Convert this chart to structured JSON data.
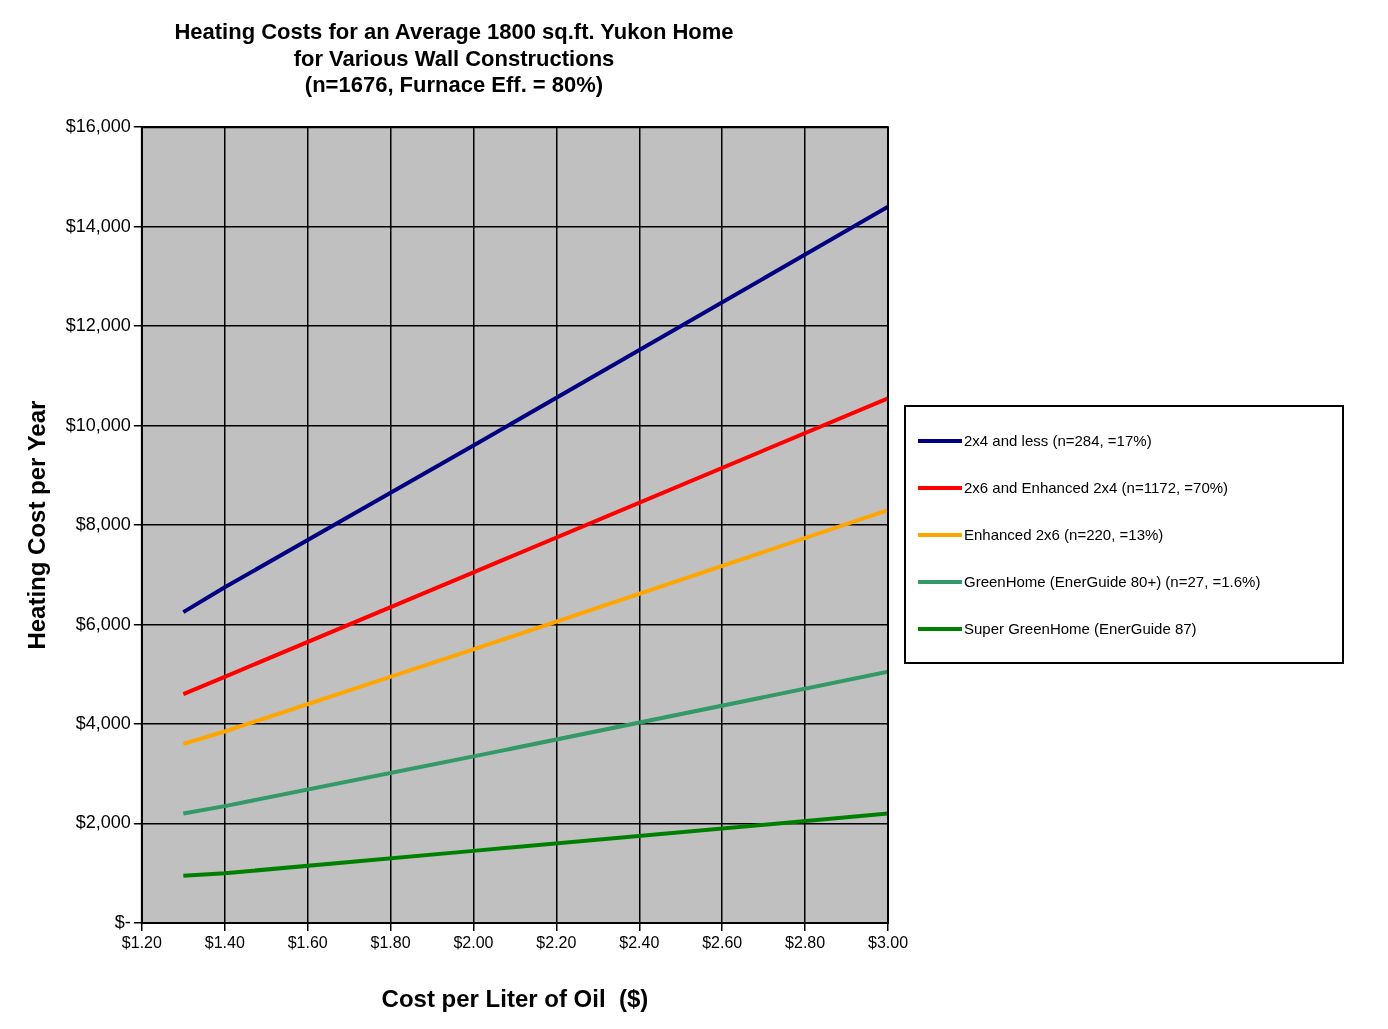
{
  "chart_data": {
    "type": "line",
    "title": "Heating Costs for an Average 1800 sq.ft. Yukon Home\nfor Various Wall Constructions\n(n=1676, Furnace Eff. = 80%)",
    "xlabel": "Cost per Liter of Oil  ($)",
    "ylabel": "Heating Cost per Year",
    "x": [
      1.3,
      1.4,
      2.0,
      3.0
    ],
    "series": [
      {
        "name": "2x4 and less  (n=284, =17%)",
        "color": "#000080",
        "values": [
          6250,
          6750,
          9600,
          14400
        ]
      },
      {
        "name": "2x6 and Enhanced 2x4 (n=1172, =70%)",
        "color": "#ff0000",
        "values": [
          4600,
          4950,
          7050,
          10550
        ]
      },
      {
        "name": "Enhanced 2x6 (n=220, =13%)",
        "color": "#ffa500",
        "values": [
          3600,
          3850,
          5500,
          8300
        ]
      },
      {
        "name": "GreenHome (EnerGuide 80+) (n=27, =1.6%)",
        "color": "#339966",
        "values": [
          2200,
          2350,
          3350,
          5050
        ]
      },
      {
        "name": "Super GreenHome (EnerGuide 87)",
        "color": "#008000",
        "values": [
          950,
          1000,
          1450,
          2200
        ]
      }
    ],
    "xlim": [
      1.2,
      3.0
    ],
    "xticks": [
      {
        "value": 1.2,
        "label": "$1.20"
      },
      {
        "value": 1.4,
        "label": "$1.40"
      },
      {
        "value": 1.6,
        "label": "$1.60"
      },
      {
        "value": 1.8,
        "label": "$1.80"
      },
      {
        "value": 2.0,
        "label": "$2.00"
      },
      {
        "value": 2.2,
        "label": "$2.20"
      },
      {
        "value": 2.4,
        "label": "$2.40"
      },
      {
        "value": 2.6,
        "label": "$2.60"
      },
      {
        "value": 2.8,
        "label": "$2.80"
      },
      {
        "value": 3.0,
        "label": "$3.00"
      }
    ],
    "ylim": [
      0,
      16000
    ],
    "yticks": [
      {
        "value": 0,
        "label": "$-"
      },
      {
        "value": 2000,
        "label": "$2,000"
      },
      {
        "value": 4000,
        "label": "$4,000"
      },
      {
        "value": 6000,
        "label": "$6,000"
      },
      {
        "value": 8000,
        "label": "$8,000"
      },
      {
        "value": 10000,
        "label": "$10,000"
      },
      {
        "value": 12000,
        "label": "$12,000"
      },
      {
        "value": 14000,
        "label": "$14,000"
      },
      {
        "value": 16000,
        "label": "$16,000"
      }
    ],
    "grid": true,
    "legend": "right",
    "marker": "none",
    "line_style": "solid"
  }
}
